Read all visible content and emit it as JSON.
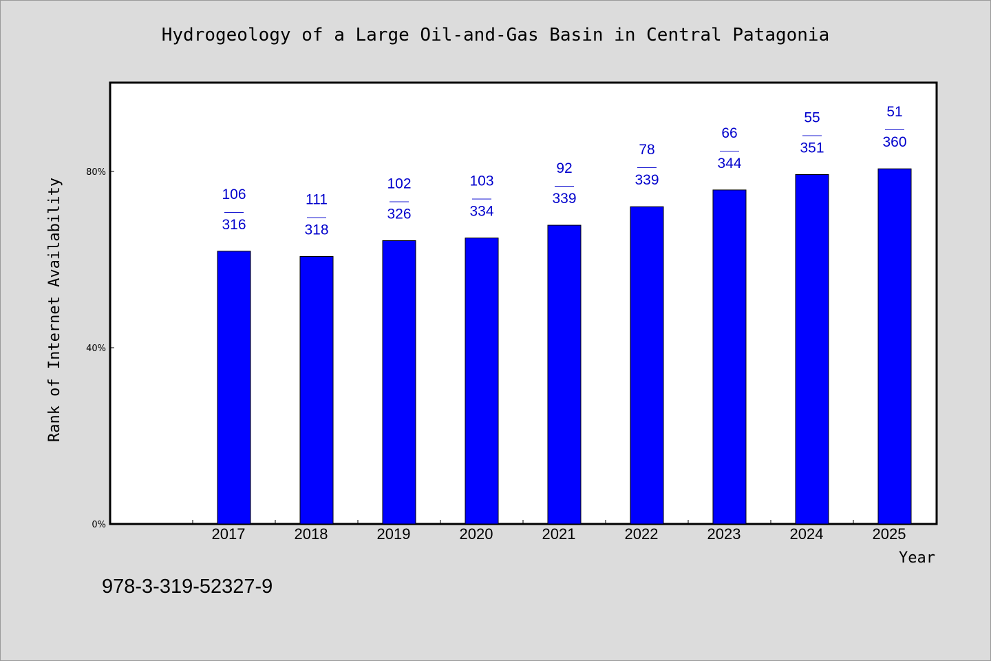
{
  "chart_data": {
    "type": "bar",
    "title": "Hydrogeology of a Large Oil-and-Gas Basin in Central Patagonia",
    "xlabel": "Year",
    "ylabel": "Rank of Internet Availability",
    "categories": [
      "2017",
      "2018",
      "2019",
      "2020",
      "2021",
      "2022",
      "2023",
      "2024",
      "2025"
    ],
    "values": [
      61.9,
      60.7,
      64.3,
      64.9,
      67.8,
      72.0,
      75.8,
      79.3,
      80.6
    ],
    "ranks": [
      "106",
      "111",
      "102",
      "103",
      "92",
      "78",
      "66",
      "55",
      "51"
    ],
    "totals": [
      "316",
      "318",
      "326",
      "334",
      "339",
      "339",
      "344",
      "351",
      "360"
    ],
    "label_separator": "——",
    "ylim": [
      0,
      100
    ],
    "yticks": [
      0,
      40,
      80
    ],
    "ytick_labels": [
      "0%",
      "40%",
      "80%"
    ],
    "bar_color": "#0000ff",
    "label_color": "#0000cc",
    "grid": false,
    "legend": "none"
  },
  "footer": {
    "isbn": "978-3-319-52327-9"
  }
}
